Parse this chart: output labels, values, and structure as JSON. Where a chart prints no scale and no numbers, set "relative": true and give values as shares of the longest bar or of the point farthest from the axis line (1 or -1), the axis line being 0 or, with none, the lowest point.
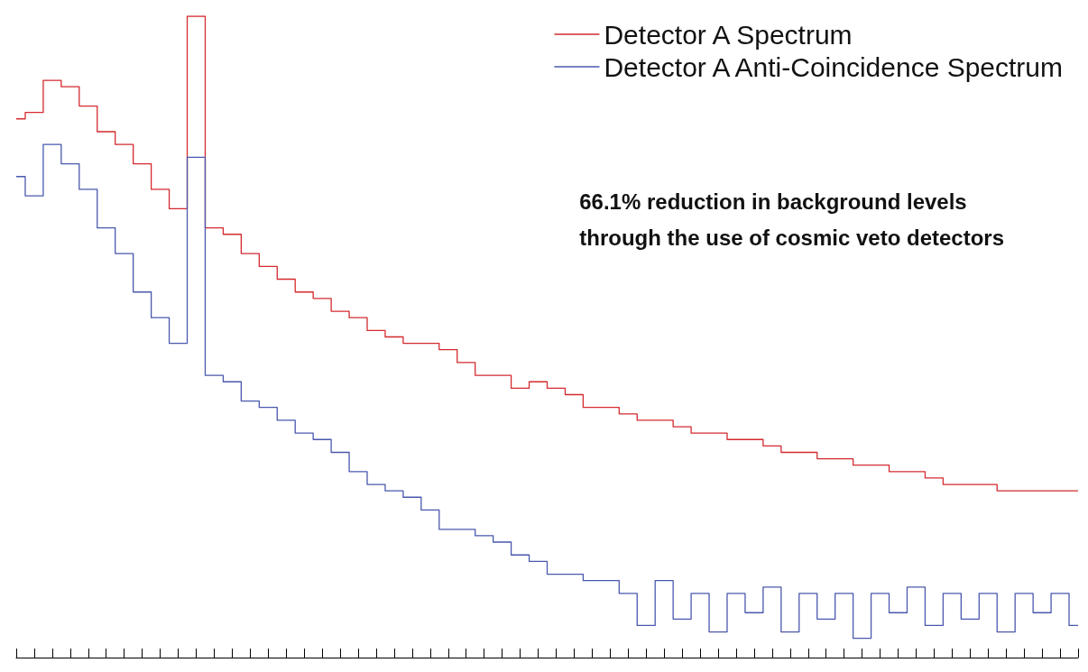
{
  "chart_data": {
    "type": "step",
    "relative": true,
    "legend": "top right",
    "grid": false,
    "marker": "none",
    "annotations": [
      "66.1% reduction in background levels\nthrough the use of cosmic veto detectors"
    ],
    "categories": [
      null,
      null,
      null,
      null,
      null,
      null,
      null,
      null,
      null,
      null,
      null,
      null,
      null,
      null,
      null,
      null,
      null,
      null,
      null,
      null,
      null,
      null,
      null,
      null,
      null,
      null,
      null,
      null,
      null,
      null,
      null,
      null,
      null,
      null,
      null,
      null,
      null,
      null,
      null,
      null,
      null,
      null,
      null,
      null,
      null,
      null,
      null,
      null,
      null,
      null,
      null,
      null,
      null,
      null,
      null,
      null,
      null,
      null,
      null,
      null
    ],
    "series": [
      {
        "name": "Detector A Spectrum",
        "color": "#d42a2f",
        "values": [
          0.84,
          0.85,
          0.9,
          0.89,
          0.86,
          0.82,
          0.8,
          0.77,
          0.73,
          0.7,
          1.0,
          0.67,
          0.66,
          0.63,
          0.61,
          0.59,
          0.57,
          0.56,
          0.54,
          0.53,
          0.51,
          0.5,
          0.49,
          0.49,
          0.48,
          0.46,
          0.44,
          0.44,
          0.42,
          0.43,
          0.42,
          0.41,
          0.39,
          0.39,
          0.38,
          0.37,
          0.37,
          0.36,
          0.35,
          0.35,
          0.34,
          0.34,
          0.33,
          0.32,
          0.32,
          0.31,
          0.31,
          0.3,
          0.3,
          0.29,
          0.29,
          0.28,
          0.27,
          0.27,
          0.27,
          0.26,
          0.26,
          0.26,
          0.26,
          0.26
        ]
      },
      {
        "name": "Detector A Anti-Coincidence Spectrum",
        "color": "#4a58ad",
        "values": [
          0.75,
          0.72,
          0.8,
          0.77,
          0.73,
          0.67,
          0.63,
          0.57,
          0.53,
          0.49,
          0.78,
          0.44,
          0.43,
          0.4,
          0.39,
          0.37,
          0.35,
          0.34,
          0.32,
          0.29,
          0.27,
          0.26,
          0.25,
          0.23,
          0.2,
          0.2,
          0.19,
          0.18,
          0.16,
          0.15,
          0.13,
          0.13,
          0.12,
          0.12,
          0.1,
          0.05,
          0.12,
          0.06,
          0.1,
          0.04,
          0.1,
          0.07,
          0.11,
          0.04,
          0.1,
          0.06,
          0.1,
          0.03,
          0.1,
          0.07,
          0.11,
          0.05,
          0.1,
          0.06,
          0.1,
          0.04,
          0.1,
          0.07,
          0.1,
          0.05
        ]
      }
    ]
  }
}
